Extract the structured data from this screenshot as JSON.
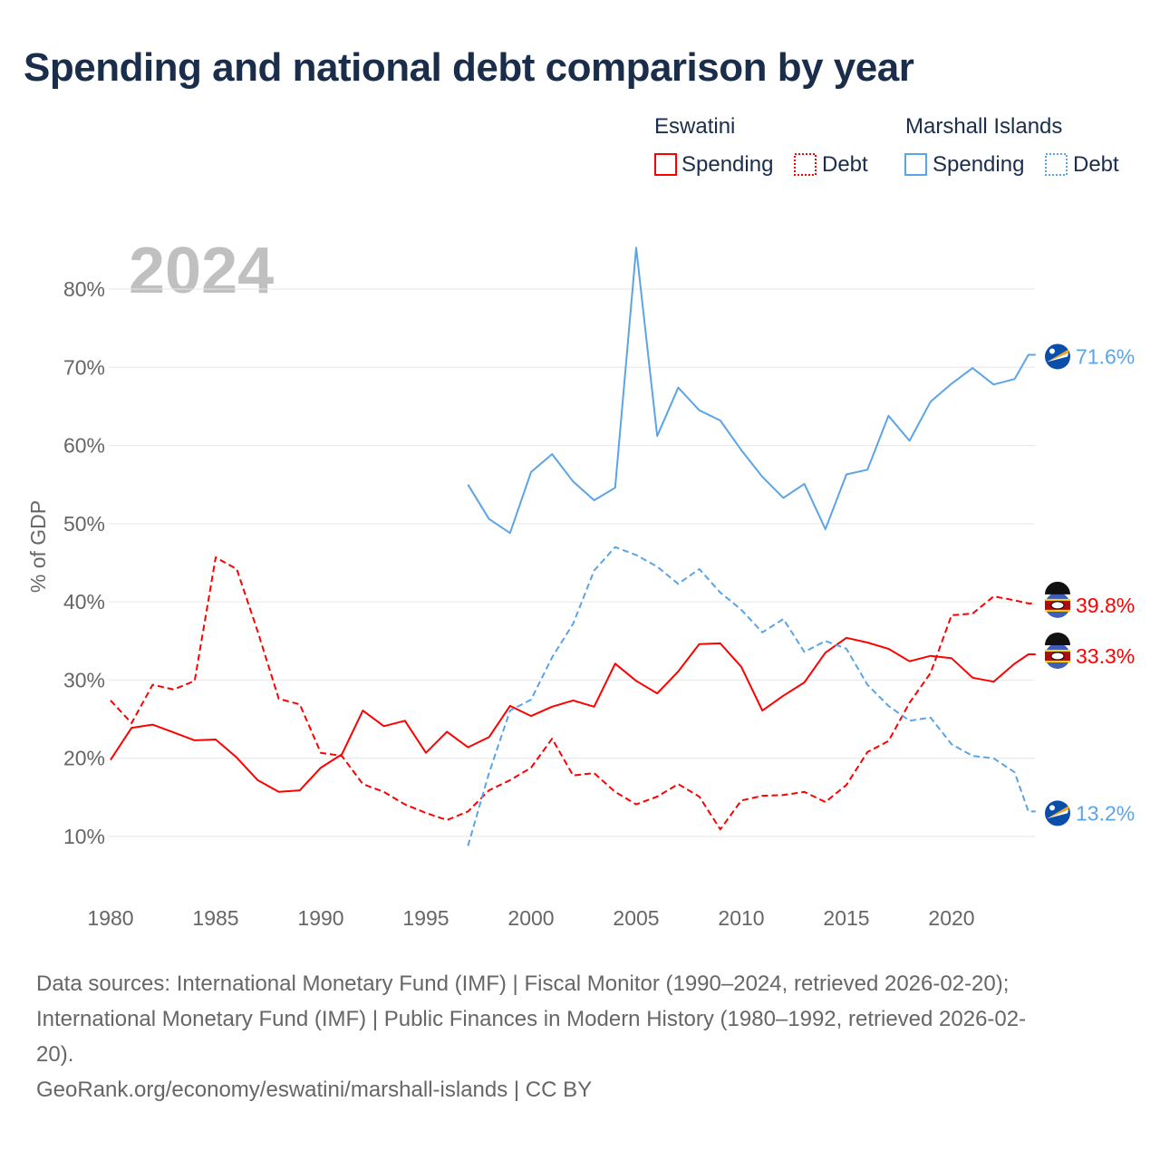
{
  "title": "Spending and national debt comparison by year",
  "colors": {
    "eswatini": "#ff0000",
    "marshall": "#5ba4e6",
    "grid": "#e6e6e6",
    "text": "#666666",
    "title": "#1a2e4c"
  },
  "legend": {
    "groups": [
      {
        "name": "Eswatini",
        "spending": "Spending",
        "debt": "Debt"
      },
      {
        "name": "Marshall Islands",
        "spending": "Spending",
        "debt": "Debt"
      }
    ]
  },
  "sources": {
    "line1": "Data sources: International Monetary Fund (IMF) | Fiscal Monitor (1990–2024, retrieved 2026-02-20);",
    "line2": "International Monetary Fund (IMF) | Public Finances in Modern History (1980–1992, retrieved 2026-02-",
    "line3": "20).",
    "line4": "GeoRank.org/economy/eswatini/marshall-islands | CC BY"
  },
  "chart_data": {
    "type": "line",
    "year_label": "2024",
    "ylabel": "% of GDP",
    "xlim": [
      1980,
      2024
    ],
    "ylim": [
      10,
      80
    ],
    "xticks": [
      1980,
      1985,
      1990,
      1995,
      2000,
      2005,
      2010,
      2015,
      2020
    ],
    "xtick_labels": [
      "1980",
      "1985",
      "1990",
      "1995",
      "2000",
      "2005",
      "2010",
      "2015",
      "2020"
    ],
    "yticks": [
      10,
      20,
      30,
      40,
      50,
      60,
      70,
      80
    ],
    "ytick_labels": [
      "10%",
      "20%",
      "30%",
      "40%",
      "50%",
      "60%",
      "70%",
      "80%"
    ],
    "grid": true,
    "legend_position": "top-right",
    "series": [
      {
        "name": "Eswatini Spending",
        "country": "eswatini",
        "dashed": false,
        "start": 1980,
        "end_label": "33.3%",
        "values": [
          19.8,
          23.9,
          24.3,
          23.3,
          22.3,
          22.4,
          20.1,
          17.2,
          15.7,
          15.9,
          18.8,
          20.5,
          26.1,
          24.1,
          24.8,
          20.7,
          23.4,
          21.4,
          22.7,
          26.7,
          25.4,
          26.6,
          27.4,
          26.6,
          32.1,
          29.9,
          28.3,
          31.1,
          34.6,
          34.7,
          31.7,
          26.1,
          28.0,
          29.7,
          33.5,
          35.4,
          34.8,
          34.0,
          32.4,
          33.1,
          32.8,
          30.3,
          29.8,
          32.1,
          33.3
        ]
      },
      {
        "name": "Eswatini Debt",
        "country": "eswatini",
        "dashed": true,
        "start": 1980,
        "end_label": "39.8%",
        "values": [
          27.4,
          24.5,
          29.4,
          28.8,
          29.9,
          45.7,
          44.2,
          36.2,
          27.6,
          26.9,
          20.7,
          20.3,
          16.7,
          15.7,
          14.1,
          13.0,
          12.1,
          13.2,
          15.9,
          17.2,
          18.8,
          22.5,
          17.8,
          18.1,
          15.7,
          14.1,
          15.1,
          16.7,
          15.1,
          10.9,
          14.6,
          15.2,
          15.3,
          15.7,
          14.4,
          16.6,
          20.8,
          22.2,
          27.1,
          30.9,
          38.3,
          38.5,
          40.7,
          40.2,
          39.8
        ]
      },
      {
        "name": "Marshall Islands Spending",
        "country": "marshall",
        "dashed": false,
        "start": 1997,
        "end_label": "71.6%",
        "values": [
          55.0,
          50.6,
          48.8,
          56.6,
          58.9,
          55.4,
          53.0,
          54.6,
          85.3,
          61.2,
          67.4,
          64.5,
          63.2,
          59.4,
          56.0,
          53.3,
          55.1,
          49.3,
          56.3,
          56.9,
          63.8,
          60.6,
          65.6,
          67.9,
          69.9,
          67.8,
          68.5,
          71.6
        ]
      },
      {
        "name": "Marshall Islands Debt",
        "country": "marshall",
        "dashed": true,
        "start": 1997,
        "end_label": "13.2%",
        "values": [
          8.8,
          18.1,
          26.1,
          27.5,
          32.9,
          37.2,
          44.0,
          47.0,
          46.0,
          44.5,
          42.3,
          44.2,
          41.2,
          39.0,
          36.1,
          37.8,
          33.6,
          35.0,
          34.0,
          29.4,
          26.7,
          24.8,
          25.2,
          21.8,
          20.3,
          20.0,
          18.2,
          13.2
        ]
      }
    ]
  }
}
